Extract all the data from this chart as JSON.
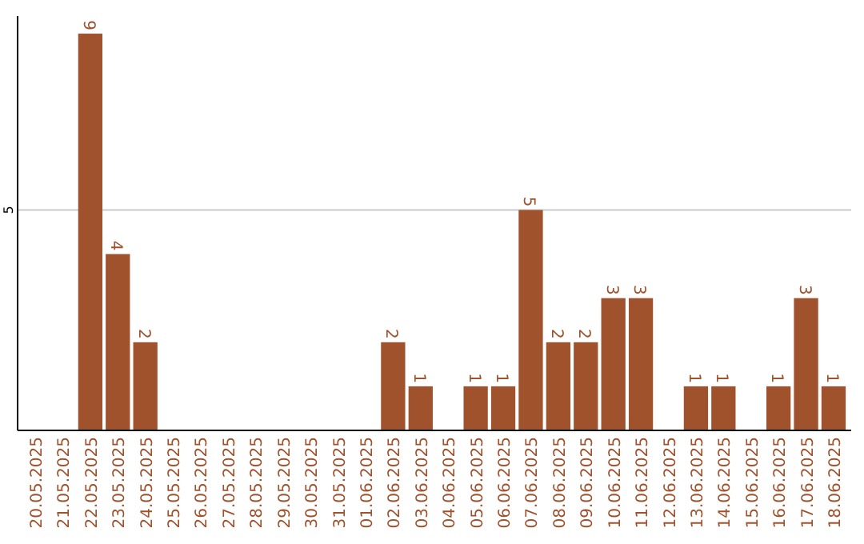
{
  "chart_data": {
    "type": "bar",
    "categories": [
      "20.05.2025",
      "21.05.2025",
      "22.05.2025",
      "23.05.2025",
      "24.05.2025",
      "25.05.2025",
      "26.05.2025",
      "27.05.2025",
      "28.05.2025",
      "29.05.2025",
      "30.05.2025",
      "31.05.2025",
      "01.06.2025",
      "02.06.2025",
      "03.06.2025",
      "04.06.2025",
      "05.06.2025",
      "06.06.2025",
      "07.06.2025",
      "08.06.2025",
      "09.06.2025",
      "10.06.2025",
      "11.06.2025",
      "12.06.2025",
      "13.06.2025",
      "14.06.2025",
      "15.06.2025",
      "16.06.2025",
      "17.06.2025",
      "18.06.2025"
    ],
    "values": [
      0,
      0,
      9,
      4,
      2,
      0,
      0,
      0,
      0,
      0,
      0,
      0,
      0,
      2,
      1,
      0,
      1,
      1,
      5,
      2,
      2,
      3,
      3,
      0,
      1,
      1,
      0,
      1,
      3,
      1
    ],
    "value_labels": [
      null,
      null,
      "9",
      "4",
      "2",
      null,
      null,
      null,
      null,
      null,
      null,
      null,
      null,
      "2",
      "1",
      null,
      "1",
      "1",
      "5",
      "2",
      "2",
      "3",
      "3",
      null,
      "1",
      "1",
      null,
      "1",
      "3",
      "1"
    ],
    "color": "#a0522d",
    "ylim": [
      0,
      9.4
    ],
    "yticks": [
      5
    ],
    "grid": "y"
  }
}
